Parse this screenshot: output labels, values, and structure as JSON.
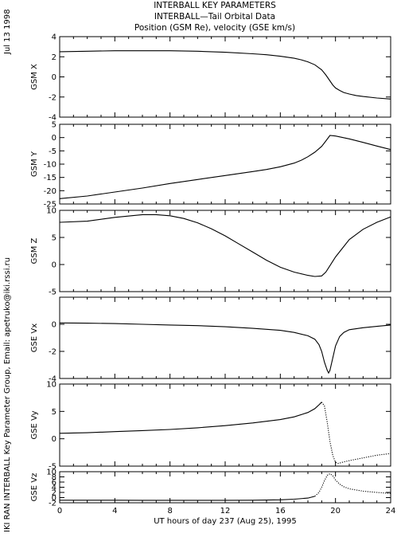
{
  "header": {
    "date": "Jul 13 1998",
    "title_line1": "INTERBALL KEY PARAMETERS",
    "title_line2": "INTERBALL—Tail Orbital Data",
    "title_line3": "Position (GSM Re), velocity (GSE km/s)"
  },
  "footer": {
    "credit": "IKI RAN INTERBALL Key Parameter Group, Email: apetruko@iki.rssi.ru"
  },
  "chart_data": {
    "type": "line",
    "xlabel": "UT hours of day 237 (Aug 25), 1995",
    "xlim": [
      0,
      24
    ],
    "xticks": [
      0,
      4,
      8,
      12,
      16,
      20,
      24
    ],
    "panels": [
      {
        "name": "GSM X",
        "ylim": [
          -4,
          4
        ],
        "yticks": [
          -4,
          -2,
          0,
          2,
          4
        ],
        "dotted_after": null,
        "x": [
          0,
          2,
          4,
          6,
          8,
          10,
          12,
          14,
          15,
          16,
          17,
          17.5,
          18,
          18.5,
          19,
          19.3,
          19.6,
          19.8,
          20,
          20.3,
          20.6,
          21,
          21.5,
          22,
          23,
          24
        ],
        "y": [
          2.5,
          2.55,
          2.6,
          2.6,
          2.6,
          2.55,
          2.45,
          2.3,
          2.2,
          2.05,
          1.85,
          1.7,
          1.5,
          1.2,
          0.7,
          0.2,
          -0.4,
          -0.8,
          -1.1,
          -1.35,
          -1.55,
          -1.7,
          -1.85,
          -1.95,
          -2.1,
          -2.2
        ]
      },
      {
        "name": "GSM Y",
        "ylim": [
          -25,
          5
        ],
        "yticks": [
          -25,
          -20,
          -15,
          -10,
          -5,
          0,
          5
        ],
        "dotted_after": null,
        "x": [
          0,
          2,
          4,
          6,
          8,
          10,
          12,
          14,
          15,
          16,
          17,
          17.5,
          18,
          18.5,
          19,
          19.3,
          19.6,
          20,
          21,
          22,
          23,
          24
        ],
        "y": [
          -23,
          -22,
          -20.5,
          -19,
          -17.3,
          -15.8,
          -14.3,
          -12.8,
          -12,
          -11,
          -9.6,
          -8.6,
          -7.2,
          -5.5,
          -3.3,
          -1.3,
          0.8,
          0.6,
          -0.5,
          -1.8,
          -3.2,
          -4.5
        ]
      },
      {
        "name": "GSM Z",
        "ylim": [
          -5,
          10
        ],
        "yticks": [
          -5,
          0,
          5,
          10
        ],
        "dotted_after": null,
        "x": [
          0,
          2,
          4,
          6,
          7,
          8,
          9,
          10,
          11,
          12,
          13,
          14,
          15,
          16,
          17,
          18,
          18.5,
          19,
          19.3,
          19.6,
          20,
          20.5,
          21,
          22,
          23,
          24
        ],
        "y": [
          7.8,
          8.0,
          8.7,
          9.2,
          9.2,
          9.0,
          8.5,
          7.7,
          6.6,
          5.3,
          3.8,
          2.3,
          0.8,
          -0.5,
          -1.4,
          -2.0,
          -2.2,
          -2.1,
          -1.4,
          -0.2,
          1.4,
          3.0,
          4.6,
          6.5,
          7.8,
          8.8
        ]
      },
      {
        "name": "GSE Vx",
        "ylim": [
          -4,
          2
        ],
        "yticks": [
          -4,
          -2,
          0
        ],
        "dotted_after": null,
        "x": [
          0,
          2,
          4,
          6,
          8,
          10,
          12,
          14,
          16,
          17,
          18,
          18.5,
          18.8,
          19,
          19.2,
          19.4,
          19.5,
          19.6,
          19.8,
          20,
          20.3,
          20.6,
          21,
          22,
          23,
          24
        ],
        "y": [
          0.1,
          0.08,
          0.05,
          0.0,
          -0.05,
          -0.1,
          -0.18,
          -0.3,
          -0.45,
          -0.6,
          -0.85,
          -1.1,
          -1.5,
          -2.0,
          -2.8,
          -3.4,
          -3.6,
          -3.4,
          -2.5,
          -1.6,
          -0.9,
          -0.6,
          -0.4,
          -0.25,
          -0.15,
          -0.05
        ]
      },
      {
        "name": "GSE Vy",
        "ylim": [
          -5,
          10
        ],
        "yticks": [
          -5,
          0,
          5,
          10
        ],
        "dotted_after": 19.0,
        "x": [
          0,
          2,
          4,
          6,
          8,
          10,
          12,
          14,
          16,
          17,
          18,
          18.5,
          18.8,
          19,
          19.2,
          19.4,
          19.6,
          19.8,
          20,
          20.2,
          20.5,
          21,
          22,
          23,
          24
        ],
        "y": [
          1.0,
          1.1,
          1.3,
          1.5,
          1.7,
          2.0,
          2.4,
          2.9,
          3.5,
          4.0,
          4.8,
          5.5,
          6.2,
          6.7,
          6.0,
          3.0,
          -0.5,
          -3.0,
          -4.3,
          -4.5,
          -4.3,
          -4.0,
          -3.5,
          -3.0,
          -2.7
        ]
      },
      {
        "name": "GSE Vz",
        "ylim": [
          -2,
          10
        ],
        "yticks": [
          -2,
          0,
          2,
          4,
          6,
          8,
          10
        ],
        "dotted_after": 18.5,
        "x": [
          0,
          2,
          4,
          6,
          8,
          10,
          12,
          14,
          16,
          17,
          18,
          18.5,
          18.8,
          19,
          19.2,
          19.4,
          19.6,
          19.8,
          20,
          20.3,
          20.6,
          21,
          22,
          23,
          24
        ],
        "y": [
          -1.0,
          -1.0,
          -1.0,
          -1.05,
          -1.05,
          -1.05,
          -1.05,
          -1.0,
          -0.85,
          -0.6,
          -0.2,
          0.5,
          2.0,
          4.0,
          6.5,
          8.6,
          9.2,
          8.5,
          6.8,
          5.2,
          4.2,
          3.4,
          2.5,
          2.0,
          1.6
        ]
      }
    ]
  }
}
